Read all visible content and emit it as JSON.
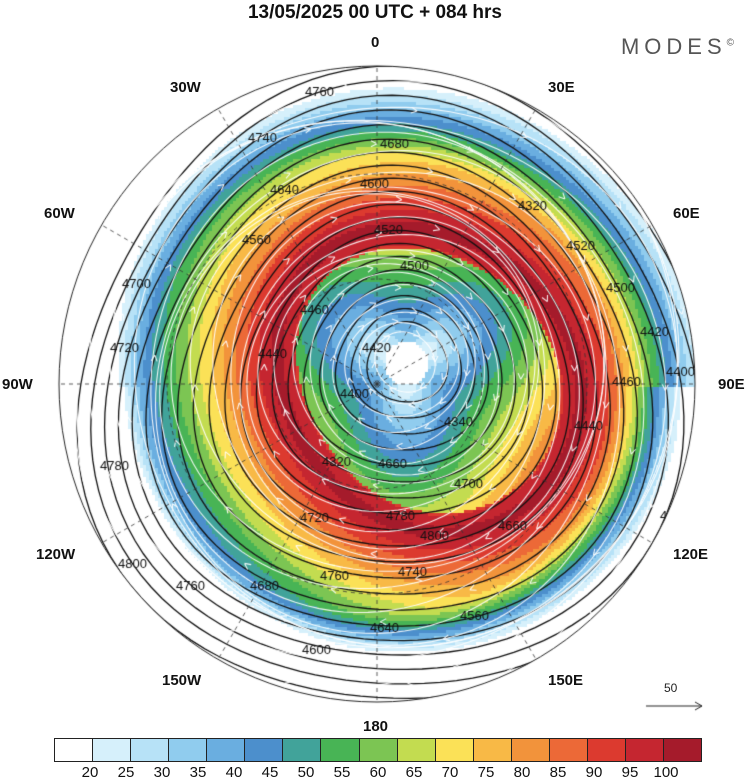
{
  "title": "13/05/2025  00 UTC  + 084 hrs",
  "brand": "MODES",
  "brand_mark": "©",
  "map": {
    "longitude_labels": {
      "top": "0",
      "top_right": "30E",
      "upper_right": "60E",
      "right": "90E",
      "lower_right": "120E",
      "bottom_right": "150E",
      "bottom": "180",
      "bottom_left": "150W",
      "lower_left": "120W",
      "left": "90W",
      "upper_left": "60W",
      "top_left": "30W"
    },
    "contour_labels": [
      "4760",
      "4740",
      "4680",
      "4640",
      "4600",
      "4560",
      "4520",
      "4500",
      "4460",
      "4440",
      "4420",
      "4400",
      "4340",
      "4320",
      "4660",
      "4700",
      "4720",
      "4780",
      "4800"
    ],
    "vector_reference": "50"
  },
  "colorbar": {
    "ticks": [
      "20",
      "25",
      "30",
      "35",
      "40",
      "45",
      "50",
      "55",
      "60",
      "65",
      "70",
      "75",
      "80",
      "85",
      "90",
      "95",
      "100"
    ],
    "colors": [
      "#ffffff",
      "#d6f0fb",
      "#b7e2f7",
      "#90ccee",
      "#6aaee0",
      "#4c8fcc",
      "#41a39a",
      "#48b455",
      "#7cc553",
      "#c3dc50",
      "#fbe157",
      "#f8b946",
      "#f2933b",
      "#ec6937",
      "#dc3a2f",
      "#c52630",
      "#a51b2b"
    ]
  }
}
